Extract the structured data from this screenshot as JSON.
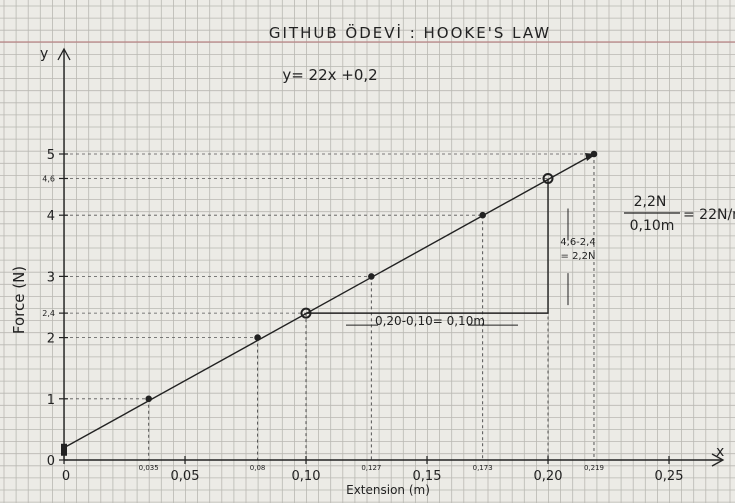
{
  "chart_data": {
    "type": "line",
    "title": "GITHUB ÖDEVİ : HOOKE'S LAW",
    "equation": "y= 22x +0,2",
    "xlabel": "Extension (m)",
    "ylabel": "Force (N)",
    "x_axis_letter": "x",
    "y_axis_letter": "y",
    "xlim": [
      0,
      0.27
    ],
    "ylim": [
      0,
      5.5
    ],
    "x_ticks": [
      {
        "value": 0,
        "label": "0"
      },
      {
        "value": 0.05,
        "label": "0,05"
      },
      {
        "value": 0.1,
        "label": "0,10"
      },
      {
        "value": 0.15,
        "label": "0,15"
      },
      {
        "value": 0.2,
        "label": "0,20"
      },
      {
        "value": 0.25,
        "label": "0,25"
      }
    ],
    "x_point_labels": [
      {
        "value": 0.035,
        "label": "0,035"
      },
      {
        "value": 0.08,
        "label": "0,08"
      },
      {
        "value": 0.127,
        "label": "0,127"
      },
      {
        "value": 0.173,
        "label": "0,173"
      },
      {
        "value": 0.219,
        "label": "0,219"
      }
    ],
    "y_ticks": [
      {
        "value": 0,
        "label": "0"
      },
      {
        "value": 1,
        "label": "1"
      },
      {
        "value": 2,
        "label": "2"
      },
      {
        "value": 2.4,
        "label": "2,4"
      },
      {
        "value": 3,
        "label": "3"
      },
      {
        "value": 4,
        "label": "4"
      },
      {
        "value": 4.6,
        "label": "4,6"
      },
      {
        "value": 5,
        "label": "5"
      }
    ],
    "points": [
      {
        "x": 0,
        "y": 0.2
      },
      {
        "x": 0.035,
        "y": 1
      },
      {
        "x": 0.08,
        "y": 2
      },
      {
        "x": 0.1,
        "y": 2.4
      },
      {
        "x": 0.127,
        "y": 3
      },
      {
        "x": 0.173,
        "y": 4
      },
      {
        "x": 0.2,
        "y": 4.6
      },
      {
        "x": 0.219,
        "y": 5
      }
    ],
    "slope_triangle": {
      "x1": 0.1,
      "y1": 2.4,
      "x2": 0.2,
      "y2": 4.6,
      "run_label": "0,20-0,10= 0,10m",
      "rise_label_top": "4,6-2,4",
      "rise_label_bottom": "= 2,2N"
    },
    "slope_note": {
      "numerator": "2,2N",
      "denominator": "0,10m",
      "result": "= 22N/m"
    },
    "grid": true
  },
  "colors": {
    "paper": "#ecebe6",
    "grid": "#b9b8b2",
    "ink": "#222222",
    "margin_line": "#b98585"
  }
}
